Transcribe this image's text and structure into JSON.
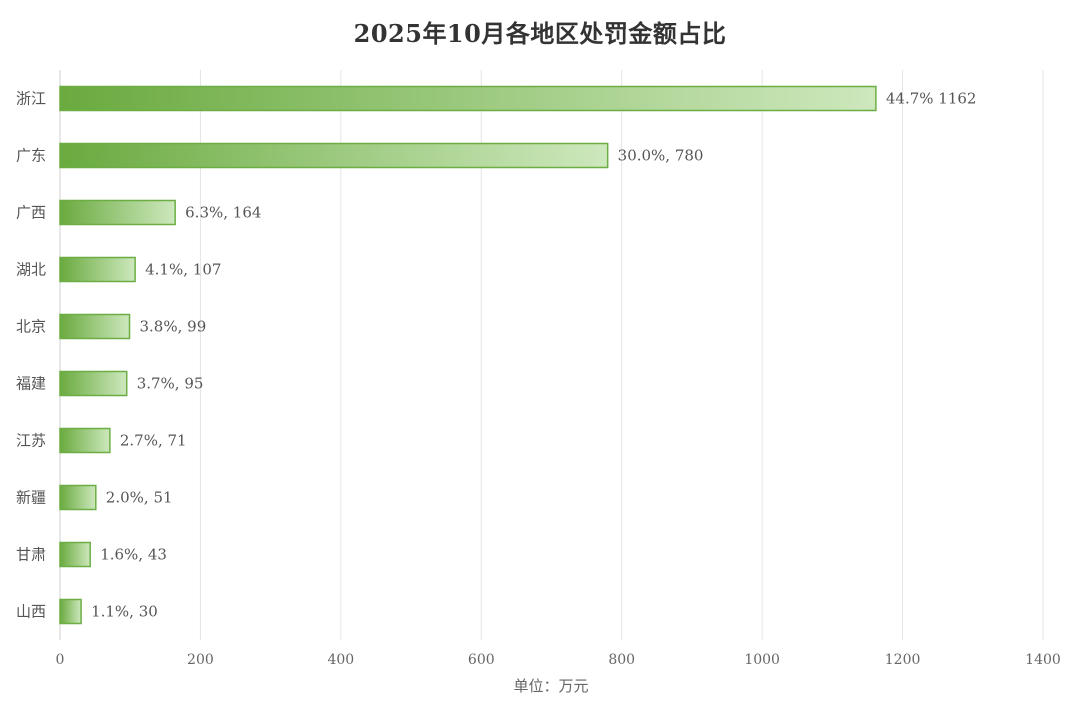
{
  "chart_data": {
    "type": "bar",
    "orientation": "horizontal",
    "title": "2025年10月各地区处罚金额占比",
    "xlabel": "单位：万元",
    "ylabel": "",
    "xlim": [
      0,
      1400
    ],
    "x_ticks": [
      0,
      200,
      400,
      600,
      800,
      1000,
      1200,
      1400
    ],
    "grid": "vertical",
    "categories": [
      "浙江",
      "广东",
      "广西",
      "湖北",
      "北京",
      "福建",
      "江苏",
      "新疆",
      "甘肃",
      "山西"
    ],
    "values": [
      1162,
      780,
      164,
      107,
      99,
      95,
      71,
      51,
      43,
      30
    ],
    "data_labels": [
      "44.7% 1162",
      "30.0%, 780",
      "6.3%, 164",
      "4.1%, 107",
      "3.8%, 99",
      "3.7%, 95",
      "2.7%, 71",
      "2.0%, 51",
      "1.6%, 43",
      "1.1%, 30"
    ],
    "bar_color_dark": "#6aaa3f",
    "bar_color_light": "#cde8bd",
    "bar_border": "#6cae43"
  }
}
